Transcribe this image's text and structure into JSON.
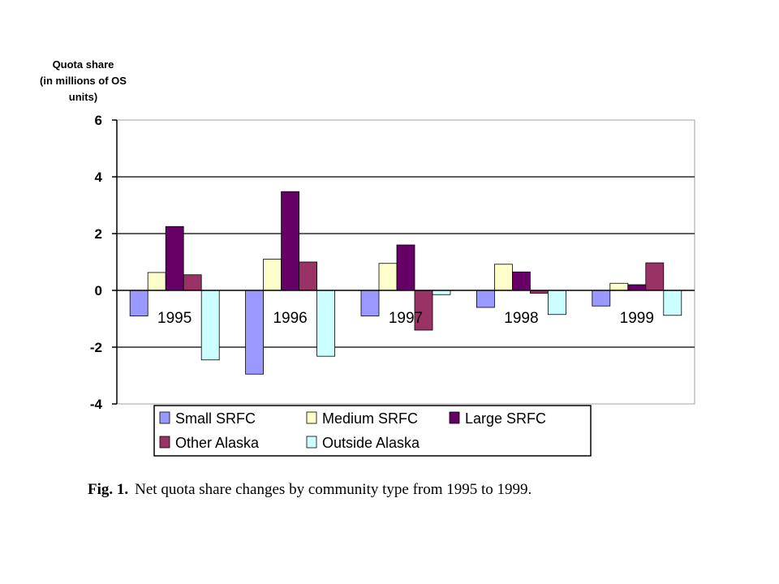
{
  "chart_data": {
    "type": "bar",
    "ylabel_lines": [
      "Quota share",
      "(in millions of OS",
      "units)"
    ],
    "ylim": [
      -4,
      6
    ],
    "yticks": [
      6,
      4,
      2,
      0,
      -2,
      -4
    ],
    "categories": [
      "1995",
      "1996",
      "1997",
      "1998",
      "1999"
    ],
    "series": [
      {
        "name": "Small SRFC",
        "color": "#9999ff",
        "values": [
          -0.9,
          -2.95,
          -0.9,
          -0.6,
          -0.55
        ]
      },
      {
        "name": "Medium SRFC",
        "color": "#ffffcc",
        "values": [
          0.63,
          1.1,
          0.95,
          0.92,
          0.25
        ]
      },
      {
        "name": "Large SRFC",
        "color": "#660066",
        "values": [
          2.25,
          3.48,
          1.6,
          0.65,
          0.2
        ]
      },
      {
        "name": "Other Alaska",
        "color": "#993366",
        "values": [
          0.55,
          1.0,
          -1.4,
          -0.1,
          0.97
        ]
      },
      {
        "name": "Outside Alaska",
        "color": "#ccffff",
        "values": [
          -2.45,
          -2.32,
          -0.15,
          -0.85,
          -0.88
        ]
      }
    ],
    "grid": true,
    "legend_position": "bottom"
  },
  "caption": {
    "label": "Fig. 1.",
    "text": "Net quota share changes by community type from 1995 to 1999."
  }
}
